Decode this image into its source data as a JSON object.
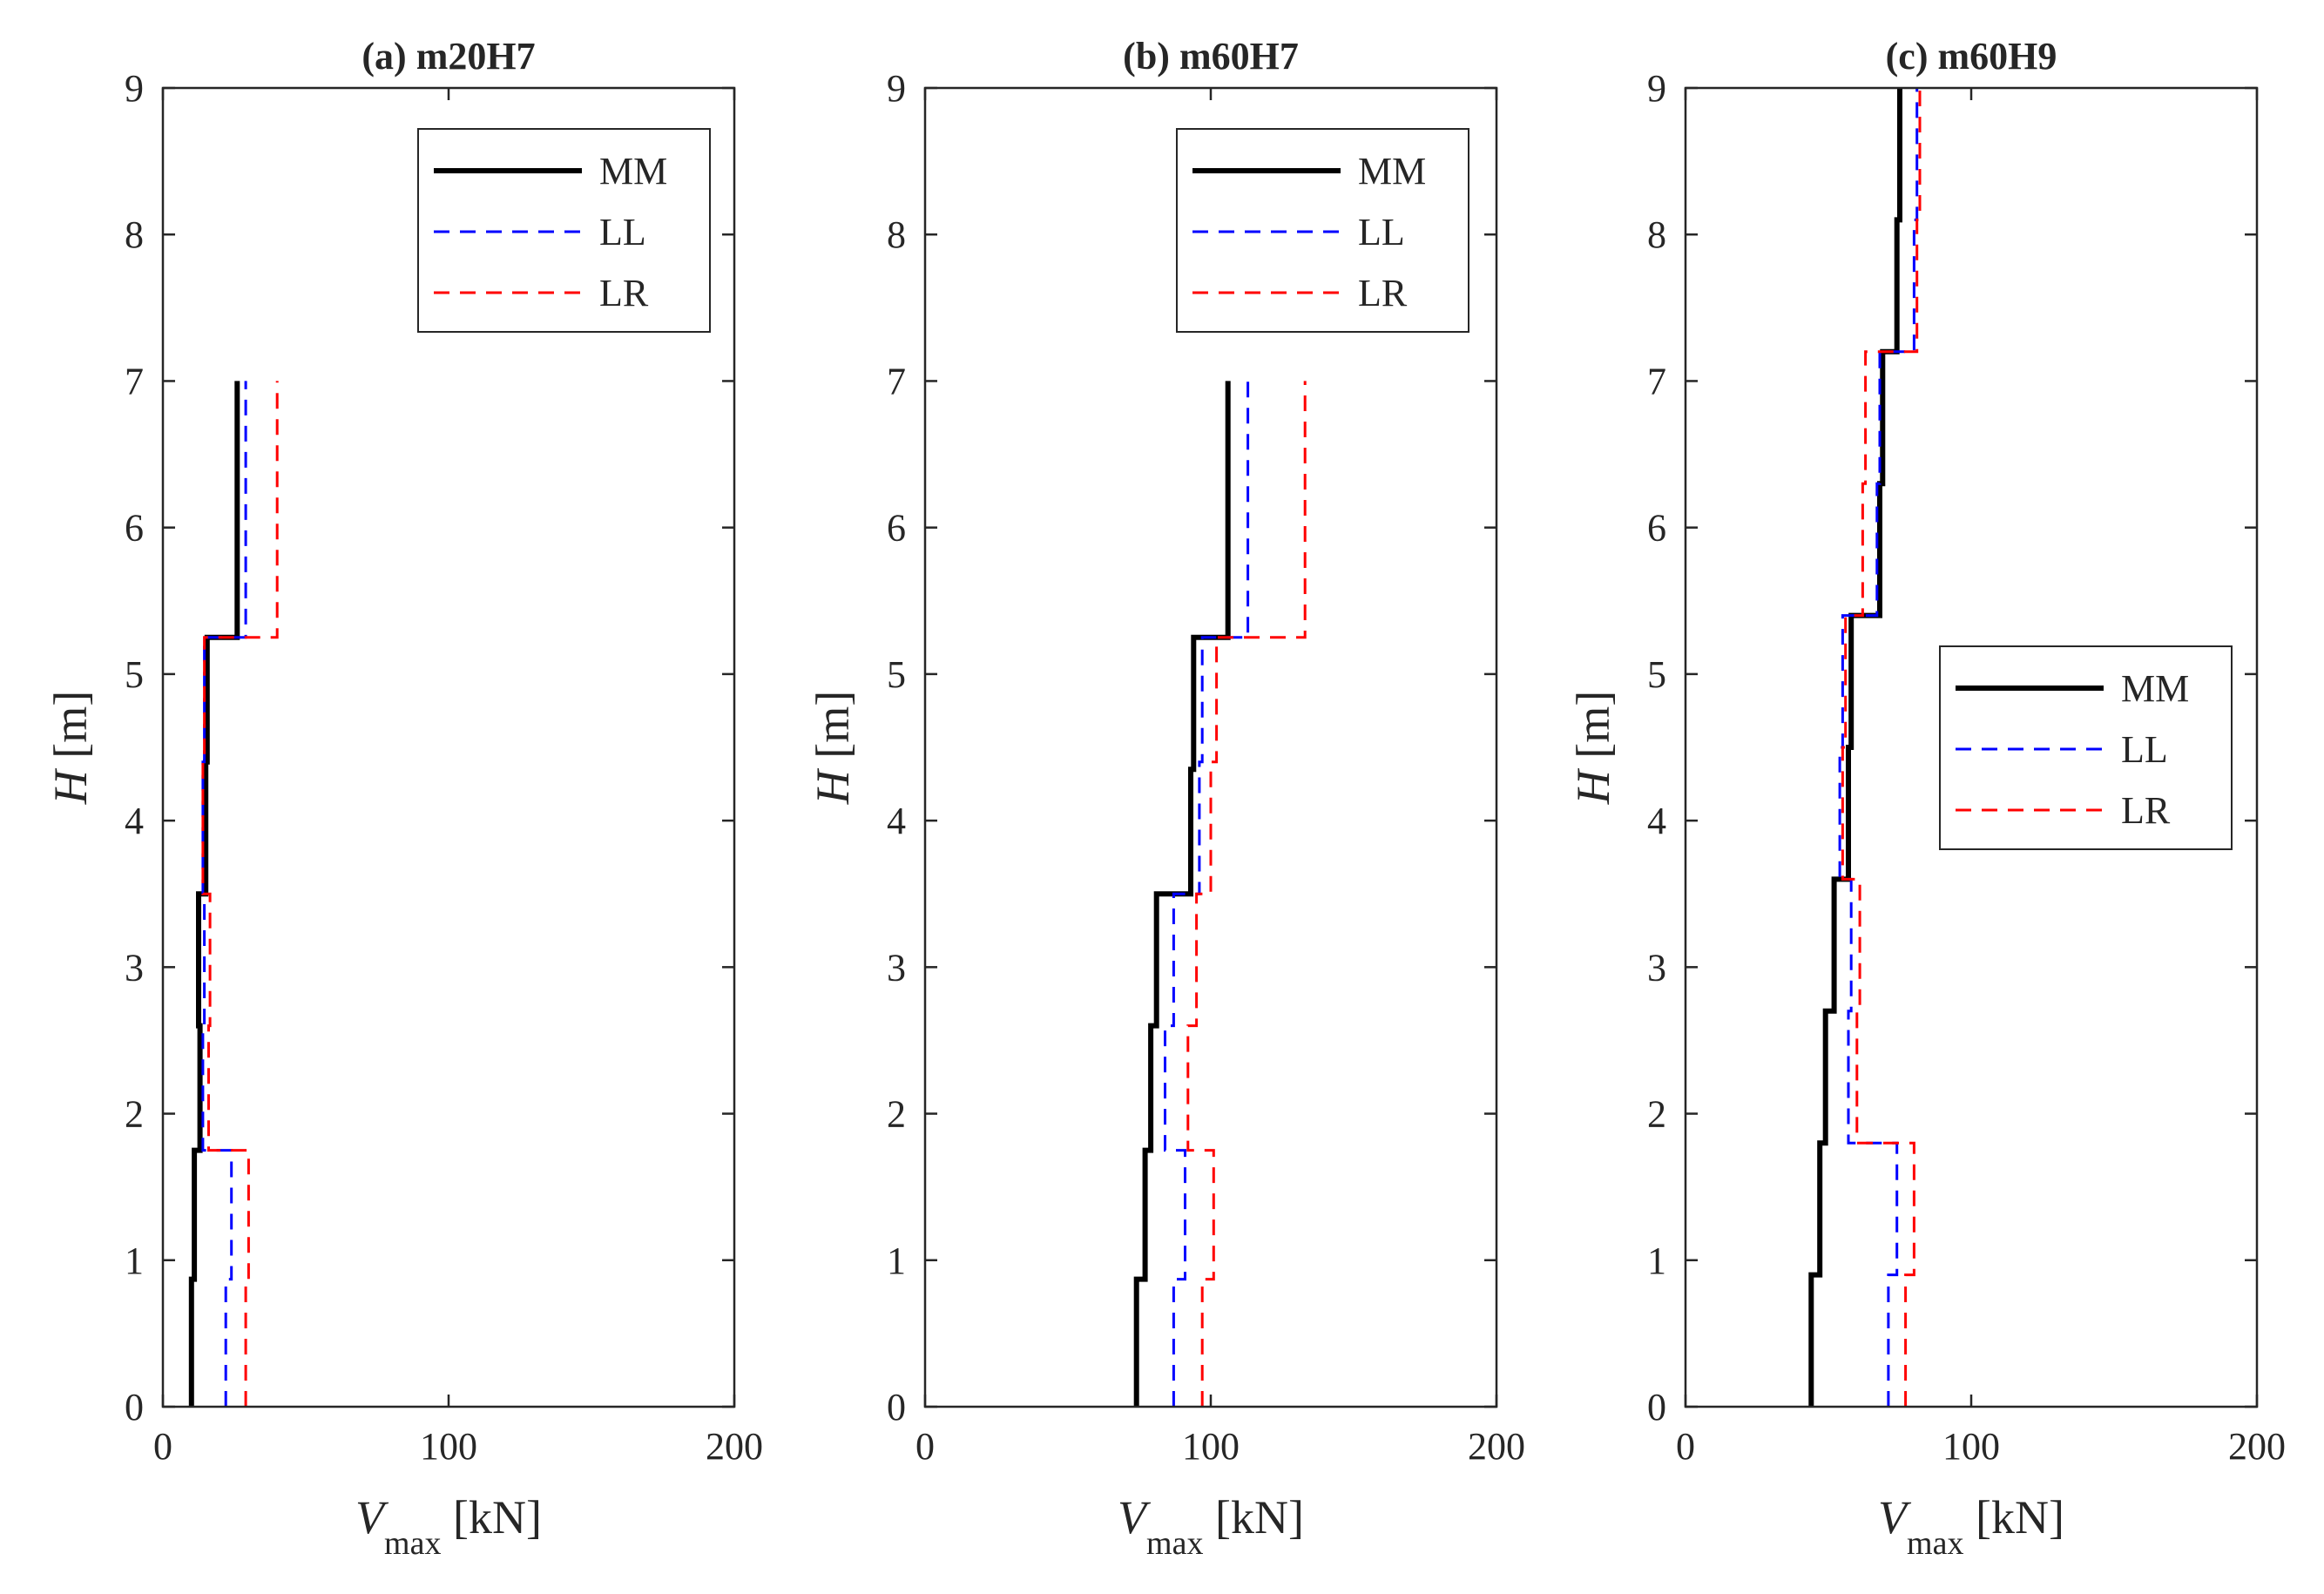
{
  "chart_data": [
    {
      "type": "line",
      "title": "(a) m20H7",
      "xlabel": {
        "symbol": "V",
        "subscript": "max",
        "unit": "[kN]"
      },
      "ylabel": {
        "symbol": "H",
        "unit": "[m]"
      },
      "xlim": [
        0,
        200
      ],
      "ylim": [
        0,
        9
      ],
      "xticks": [
        0,
        100,
        200
      ],
      "yticks": [
        0,
        1,
        2,
        3,
        4,
        5,
        6,
        7,
        8,
        9
      ],
      "legend": "top-right",
      "series": [
        {
          "name": "MM",
          "color": "#000000",
          "style": "solid",
          "points": [
            [
              10,
              0
            ],
            [
              10,
              0.87
            ],
            [
              11,
              0.87
            ],
            [
              11,
              1.75
            ],
            [
              13,
              1.75
            ],
            [
              13,
              2.6
            ],
            [
              12.5,
              2.6
            ],
            [
              12.5,
              3.5
            ],
            [
              15,
              3.5
            ],
            [
              15,
              4.4
            ],
            [
              15.5,
              4.4
            ],
            [
              15.5,
              5.25
            ],
            [
              26,
              5.25
            ],
            [
              26,
              7
            ]
          ]
        },
        {
          "name": "LL",
          "color": "#0000ff",
          "style": "dashed",
          "points": [
            [
              22,
              0
            ],
            [
              22,
              0.87
            ],
            [
              24,
              0.87
            ],
            [
              24,
              1.75
            ],
            [
              14,
              1.75
            ],
            [
              14,
              2.6
            ],
            [
              14.5,
              2.6
            ],
            [
              14.5,
              3.5
            ],
            [
              14,
              3.5
            ],
            [
              14,
              4.4
            ],
            [
              14.5,
              4.4
            ],
            [
              14.5,
              5.25
            ],
            [
              29,
              5.25
            ],
            [
              29,
              7
            ]
          ]
        },
        {
          "name": "LR",
          "color": "#ff0000",
          "style": "dashed",
          "points": [
            [
              29,
              0
            ],
            [
              29,
              0.87
            ],
            [
              30,
              0.87
            ],
            [
              30,
              1.75
            ],
            [
              16,
              1.75
            ],
            [
              16,
              2.6
            ],
            [
              16.5,
              2.6
            ],
            [
              16.5,
              3.5
            ],
            [
              14,
              3.5
            ],
            [
              14,
              4.4
            ],
            [
              14.5,
              4.4
            ],
            [
              14.5,
              5.25
            ],
            [
              40,
              5.25
            ],
            [
              40,
              7
            ]
          ]
        }
      ]
    },
    {
      "type": "line",
      "title": "(b) m60H7",
      "xlabel": {
        "symbol": "V",
        "subscript": "max",
        "unit": "[kN]"
      },
      "ylabel": {
        "symbol": "H",
        "unit": "[m]"
      },
      "xlim": [
        0,
        200
      ],
      "ylim": [
        0,
        9
      ],
      "xticks": [
        0,
        100,
        200
      ],
      "yticks": [
        0,
        1,
        2,
        3,
        4,
        5,
        6,
        7,
        8,
        9
      ],
      "legend": "top-right",
      "series": [
        {
          "name": "MM",
          "color": "#000000",
          "style": "solid",
          "points": [
            [
              74,
              0
            ],
            [
              74,
              0.87
            ],
            [
              77,
              0.87
            ],
            [
              77,
              1.75
            ],
            [
              79,
              1.75
            ],
            [
              79,
              2.6
            ],
            [
              81,
              2.6
            ],
            [
              81,
              3.5
            ],
            [
              93,
              3.5
            ],
            [
              93,
              4.35
            ],
            [
              94,
              4.35
            ],
            [
              94,
              5.25
            ],
            [
              106,
              5.25
            ],
            [
              106,
              7
            ]
          ]
        },
        {
          "name": "LL",
          "color": "#0000ff",
          "style": "dashed",
          "points": [
            [
              87,
              0
            ],
            [
              87,
              0.87
            ],
            [
              91,
              0.87
            ],
            [
              91,
              1.75
            ],
            [
              84,
              1.75
            ],
            [
              84,
              2.6
            ],
            [
              87,
              2.6
            ],
            [
              87,
              3.5
            ],
            [
              96,
              3.5
            ],
            [
              96,
              4.4
            ],
            [
              97,
              4.4
            ],
            [
              97,
              5.25
            ],
            [
              113,
              5.25
            ],
            [
              113,
              7
            ]
          ]
        },
        {
          "name": "LR",
          "color": "#ff0000",
          "style": "dashed",
          "points": [
            [
              97,
              0
            ],
            [
              97,
              0.87
            ],
            [
              101,
              0.87
            ],
            [
              101,
              1.75
            ],
            [
              92,
              1.75
            ],
            [
              92,
              2.6
            ],
            [
              95,
              2.6
            ],
            [
              95,
              3.5
            ],
            [
              100,
              3.5
            ],
            [
              100,
              4.4
            ],
            [
              102,
              4.4
            ],
            [
              102,
              5.25
            ],
            [
              133,
              5.25
            ],
            [
              133,
              7
            ]
          ]
        }
      ]
    },
    {
      "type": "line",
      "title": "(c) m60H9",
      "xlabel": {
        "symbol": "V",
        "subscript": "max",
        "unit": "[kN]"
      },
      "ylabel": {
        "symbol": "H",
        "unit": "[m]"
      },
      "xlim": [
        0,
        200
      ],
      "ylim": [
        0,
        9
      ],
      "xticks": [
        0,
        100,
        200
      ],
      "yticks": [
        0,
        1,
        2,
        3,
        4,
        5,
        6,
        7,
        8,
        9
      ],
      "legend": "right",
      "series": [
        {
          "name": "MM",
          "color": "#000000",
          "style": "solid",
          "points": [
            [
              44,
              0
            ],
            [
              44,
              0.9
            ],
            [
              47,
              0.9
            ],
            [
              47,
              1.8
            ],
            [
              49,
              1.8
            ],
            [
              49,
              2.7
            ],
            [
              52,
              2.7
            ],
            [
              52,
              3.6
            ],
            [
              57,
              3.6
            ],
            [
              57,
              4.5
            ],
            [
              58,
              4.5
            ],
            [
              58,
              5.4
            ],
            [
              68,
              5.4
            ],
            [
              68,
              6.3
            ],
            [
              69,
              6.3
            ],
            [
              69,
              7.2
            ],
            [
              74,
              7.2
            ],
            [
              74,
              8.1
            ],
            [
              75,
              8.1
            ],
            [
              75,
              9
            ]
          ]
        },
        {
          "name": "LL",
          "color": "#0000ff",
          "style": "dashed",
          "points": [
            [
              71,
              0
            ],
            [
              71,
              0.9
            ],
            [
              74,
              0.9
            ],
            [
              74,
              1.8
            ],
            [
              57,
              1.8
            ],
            [
              57,
              2.7
            ],
            [
              58,
              2.7
            ],
            [
              58,
              3.6
            ],
            [
              54,
              3.6
            ],
            [
              54,
              4.5
            ],
            [
              55,
              4.5
            ],
            [
              55,
              5.4
            ],
            [
              67,
              5.4
            ],
            [
              67,
              6.3
            ],
            [
              68,
              6.3
            ],
            [
              68,
              7.2
            ],
            [
              80,
              7.2
            ],
            [
              80,
              8.1
            ],
            [
              81,
              8.1
            ],
            [
              81,
              9
            ]
          ]
        },
        {
          "name": "LR",
          "color": "#ff0000",
          "style": "dashed",
          "points": [
            [
              77,
              0
            ],
            [
              77,
              0.9
            ],
            [
              80,
              0.9
            ],
            [
              80,
              1.8
            ],
            [
              60,
              1.8
            ],
            [
              60,
              2.7
            ],
            [
              61,
              2.7
            ],
            [
              61,
              3.6
            ],
            [
              55,
              3.6
            ],
            [
              55,
              4.5
            ],
            [
              56,
              4.5
            ],
            [
              56,
              5.4
            ],
            [
              62,
              5.4
            ],
            [
              62,
              6.3
            ],
            [
              63,
              6.3
            ],
            [
              63,
              7.2
            ],
            [
              81,
              7.2
            ],
            [
              81,
              8.1
            ],
            [
              82,
              8.1
            ],
            [
              82,
              9
            ]
          ]
        }
      ]
    }
  ]
}
